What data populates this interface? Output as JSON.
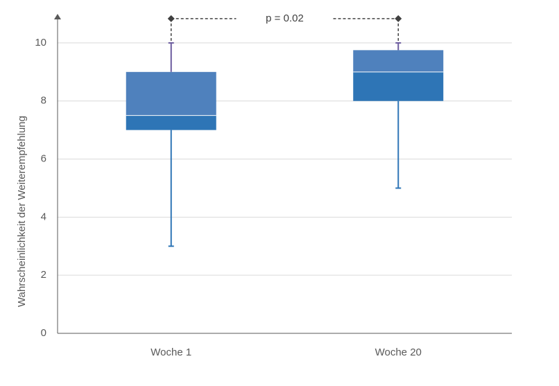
{
  "chart_data": {
    "type": "box",
    "y_label": "Wahrscheinlichkeit der Weiterempfehlung",
    "categories": [
      "Woche 1",
      "Woche 20"
    ],
    "boxes": [
      {
        "min": 3,
        "q1": 7,
        "median": 7.5,
        "q3": 9,
        "max": 10
      },
      {
        "min": 5,
        "q1": 8,
        "median": 9,
        "q3": 9.75,
        "max": 10
      }
    ],
    "colors": {
      "upper_box": "#4f81bd",
      "lower_box": "#2e75b6",
      "upper_whisker": "#6a5a9e",
      "lower_whisker": "#2e75b6"
    },
    "annotation": "p = 0.02",
    "ylim": [
      0,
      11
    ],
    "yticks": [
      0,
      2,
      4,
      6,
      8,
      10
    ],
    "grid": true
  }
}
